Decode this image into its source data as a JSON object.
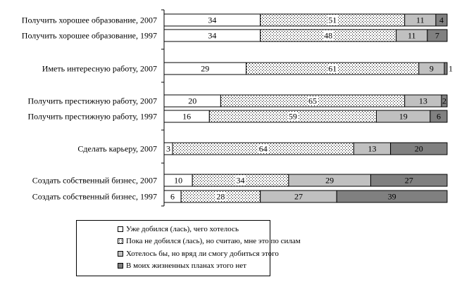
{
  "chart_data": {
    "type": "bar",
    "orientation": "horizontal",
    "stacked": true,
    "normalized": true,
    "categories": [
      "Получить хорошее образование, 2007",
      "Получить хорошее образование, 1997",
      "Иметь интересную работу, 2007",
      "Получить престижную работу, 2007",
      "Получить престижную работу, 1997",
      "Сделать карьеру, 2007",
      "Создать собственный бизнес, 2007",
      "Создать собственный бизнес, 1997"
    ],
    "series": [
      {
        "name": "Уже добился (лась), чего хотелось",
        "values": [
          34,
          34,
          29,
          20,
          16,
          3,
          10,
          6
        ]
      },
      {
        "name": "Пока не добился (лась), но считаю, мне это по силам",
        "values": [
          51,
          48,
          61,
          65,
          59,
          64,
          34,
          28
        ]
      },
      {
        "name": "Хотелось бы, но вряд ли смогу добиться этого",
        "values": [
          11,
          11,
          9,
          13,
          19,
          13,
          29,
          27
        ]
      },
      {
        "name": "В моих жизненных планах этого нет",
        "values": [
          4,
          7,
          1,
          2,
          6,
          20,
          27,
          39
        ]
      }
    ],
    "legend_position": "bottom-left",
    "grid": false,
    "colors": {
      "series_fills": [
        "#ffffff",
        "dots",
        "#c0c0c0",
        "#808080"
      ],
      "border": "#000000"
    }
  }
}
